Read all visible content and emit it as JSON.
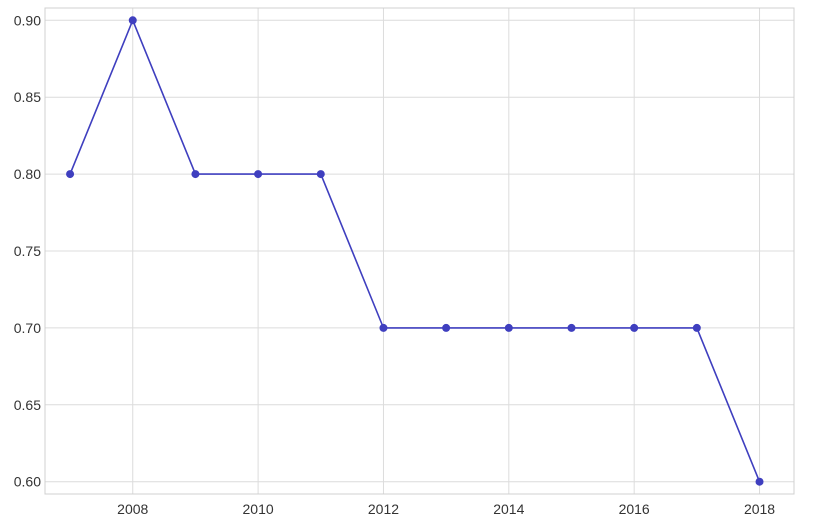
{
  "chart_data": {
    "type": "line",
    "title": "",
    "xlabel": "",
    "ylabel": "",
    "x": [
      2007,
      2008,
      2009,
      2010,
      2011,
      2012,
      2013,
      2014,
      2015,
      2016,
      2017,
      2018
    ],
    "series": [
      {
        "name": "",
        "values": [
          0.8,
          0.9,
          0.8,
          0.8,
          0.8,
          0.7,
          0.7,
          0.7,
          0.7,
          0.7,
          0.7,
          0.6
        ]
      }
    ],
    "xlim": [
      2006.6,
      2018.55
    ],
    "ylim": [
      0.592,
      0.908
    ],
    "xticks": [
      2008,
      2010,
      2012,
      2014,
      2016,
      2018
    ],
    "xtick_labels": [
      "2008",
      "2010",
      "2012",
      "2014",
      "2016",
      "2018"
    ],
    "yticks": [
      0.6,
      0.65,
      0.7,
      0.75,
      0.8,
      0.85,
      0.9
    ],
    "ytick_labels": [
      "0.60",
      "0.65",
      "0.70",
      "0.75",
      "0.80",
      "0.85",
      "0.90"
    ],
    "grid": true,
    "legend": "none",
    "colors": {
      "line": "#3f3fbf",
      "marker": "#3f3fbf",
      "grid": "#dcdcdc",
      "frame": "#d0d0d0",
      "text": "#333333"
    }
  }
}
